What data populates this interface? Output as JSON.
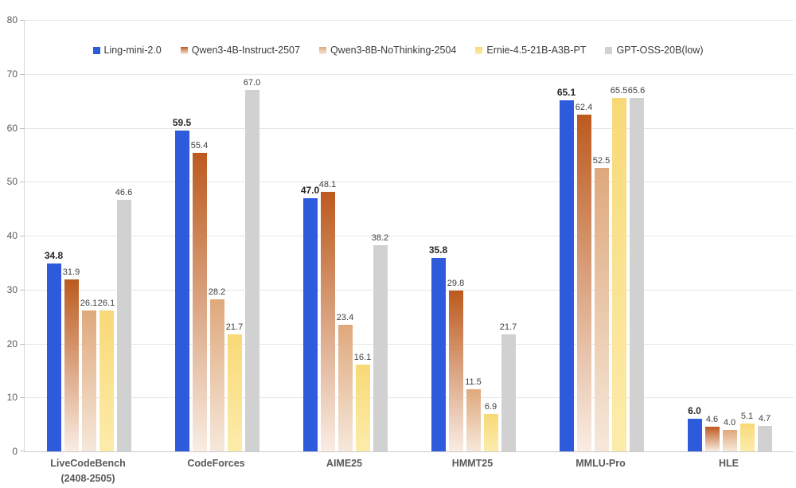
{
  "chart_data": {
    "type": "bar",
    "title": "",
    "xlabel": "",
    "ylabel": "",
    "ylim": [
      0,
      80
    ],
    "yticks": [
      0,
      10,
      20,
      30,
      40,
      50,
      60,
      70,
      80
    ],
    "grid": true,
    "legend_position": "top-center",
    "value_label_decimals": 1,
    "categories": [
      {
        "line1": "LiveCodeBench",
        "line2": "(2408-2505)"
      },
      {
        "line1": "CodeForces",
        "line2": ""
      },
      {
        "line1": "AIME25",
        "line2": ""
      },
      {
        "line1": "HMMT25",
        "line2": ""
      },
      {
        "line1": "MMLU-Pro",
        "line2": ""
      },
      {
        "line1": "HLE",
        "line2": ""
      }
    ],
    "series": [
      {
        "name": "Ling-mini-2.0",
        "values": [
          34.8,
          59.5,
          47.0,
          35.8,
          65.1,
          6.0
        ],
        "color": "#2d5bdb",
        "bold_labels": true
      },
      {
        "name": "Qwen3-4B-Instruct-2507",
        "values": [
          31.9,
          55.4,
          48.1,
          29.8,
          62.4,
          4.6
        ],
        "gradient": [
          "#bc5a1e",
          "#f9ede4"
        ],
        "bold_labels": false
      },
      {
        "name": "Qwen3-8B-NoThinking-2504",
        "values": [
          26.1,
          28.2,
          23.4,
          11.5,
          52.5,
          4.0
        ],
        "gradient": [
          "#dfa87c",
          "#f6e8da"
        ],
        "bold_labels": false
      },
      {
        "name": "Ernie-4.5-21B-A3B-PT",
        "values": [
          26.1,
          21.7,
          16.1,
          6.9,
          65.5,
          5.1
        ],
        "gradient": [
          "#f8d977",
          "#fcecab"
        ],
        "bold_labels": false
      },
      {
        "name": "GPT-OSS-20B(low)",
        "values": [
          46.6,
          67.0,
          38.2,
          21.7,
          65.6,
          4.7
        ],
        "color": "#d2d1d1",
        "bold_labels": false
      }
    ]
  }
}
